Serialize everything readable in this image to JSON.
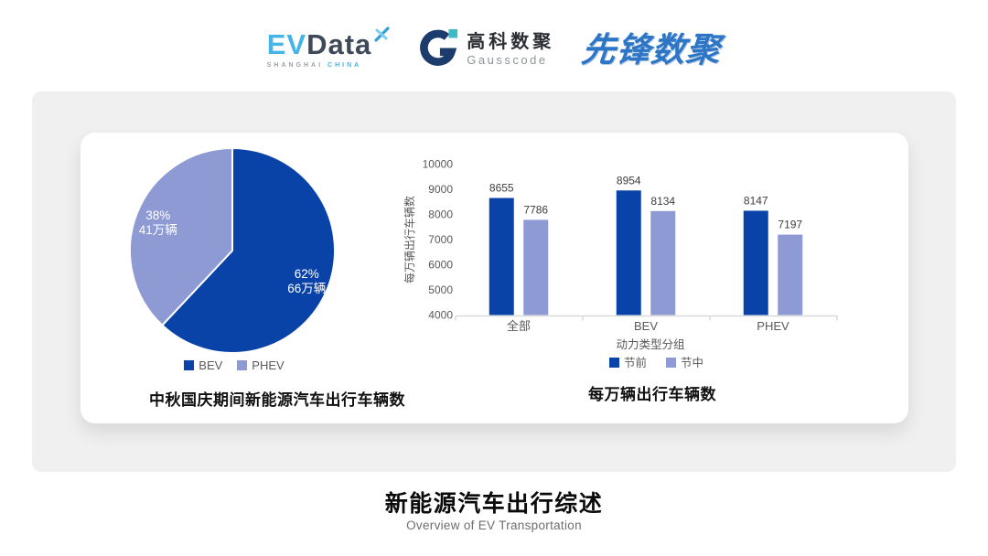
{
  "header": {
    "evdata": {
      "ev": "EV",
      "data": "Data",
      "sub1": "SHANGHAI",
      "sub2": "CHINA"
    },
    "gausscode": {
      "cn": "高科数聚",
      "en": "Gausscode"
    },
    "pioneer": {
      "text": "先锋数聚"
    }
  },
  "colors": {
    "dark_blue": "#0a43a8",
    "light_blue": "#8e9ad3",
    "panel_gray": "#f0f0f1",
    "axis_gray": "#d9d9d9"
  },
  "chart_data": [
    {
      "type": "pie",
      "title": "中秋国庆期间新能源汽车出行车辆数",
      "slices": [
        {
          "label": "BEV",
          "percent": 62,
          "value_label": "66万辆",
          "color": "#0a43a8"
        },
        {
          "label": "PHEV",
          "percent": 38,
          "value_label": "41万辆",
          "color": "#8e9ad3"
        }
      ],
      "legend_position": "bottom",
      "start_angle_deg": 0,
      "direction": "clockwise"
    },
    {
      "type": "bar",
      "title": "每万辆出行车辆数",
      "categories": [
        "全部",
        "BEV",
        "PHEV"
      ],
      "series": [
        {
          "name": "节前",
          "values": [
            8655,
            8954,
            8147
          ],
          "color": "#0a43a8"
        },
        {
          "name": "节中",
          "values": [
            7786,
            8134,
            7197
          ],
          "color": "#8e9ad3"
        }
      ],
      "xlabel": "动力类型分组",
      "ylabel": "每万辆出行车辆数",
      "ylim": [
        4000,
        10000
      ],
      "ytick_step": 1000,
      "grid": false,
      "legend_position": "bottom",
      "value_labels": true
    }
  ],
  "footer": {
    "title": "新能源汽车出行综述",
    "subtitle": "Overview of EV Transportation"
  }
}
